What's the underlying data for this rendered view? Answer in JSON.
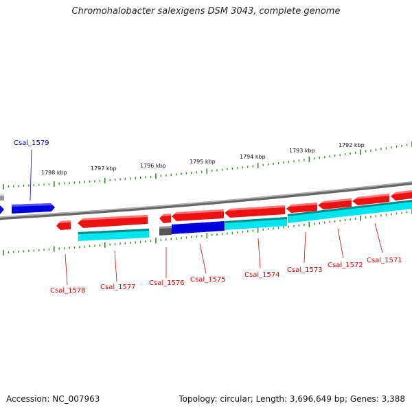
{
  "title": "Chromohalobacter salexigens DSM 3043, complete genome",
  "footer": {
    "accession": "Accession: NC_007963",
    "summary": "Topology: circular; Length: 3,696,649 bp; Genes: 3,388"
  },
  "ruler": {
    "color": "#2e8b1e",
    "labels": [
      "1798 kbp",
      "1797 kbp",
      "1796 kbp",
      "1795 kbp",
      "1794 kbp",
      "1793 kbp",
      "1792 kbp"
    ]
  },
  "colors": {
    "forward_gene": "#ee1111",
    "reverse_gene": "#00e5ee",
    "selected_gene": "#0000dd",
    "backbone": "#888888",
    "label_red": "#dd0000",
    "label_blue": "#0000cc"
  },
  "genes": [
    {
      "id": "Csal_1579",
      "strand": "+",
      "color": "blue"
    },
    {
      "id": "Csal_1578",
      "strand": "-",
      "color": "red"
    },
    {
      "id": "Csal_1577",
      "strand": "-",
      "color": "red"
    },
    {
      "id": "Csal_1576",
      "strand": "-",
      "color": "red"
    },
    {
      "id": "Csal_1575",
      "strand": "-",
      "color": "red"
    },
    {
      "id": "Csal_1574",
      "strand": "-",
      "color": "red"
    },
    {
      "id": "Csal_1573",
      "strand": "-",
      "color": "red"
    },
    {
      "id": "Csal_1572",
      "strand": "-",
      "color": "red"
    },
    {
      "id": "Csal_1571",
      "strand": "-",
      "color": "red"
    }
  ]
}
